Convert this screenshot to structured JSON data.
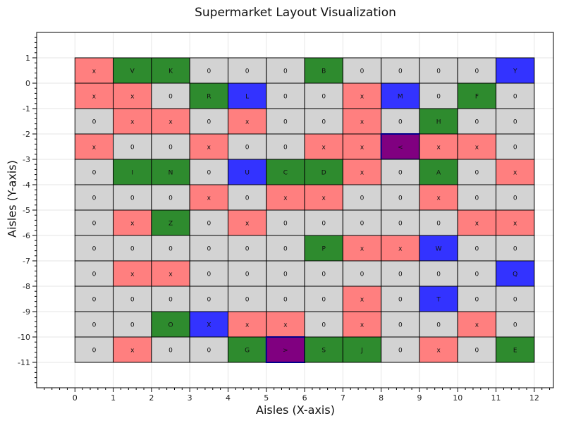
{
  "chart_data": {
    "type": "heatmap",
    "title": "Supermarket Layout Visualization",
    "xlabel": "Aisles (X-axis)",
    "ylabel": "Aisles (Y-axis)",
    "xlim": [
      -1,
      12.5
    ],
    "ylim": [
      -12,
      2
    ],
    "x_ticks": [
      0,
      1,
      2,
      3,
      4,
      5,
      6,
      7,
      8,
      9,
      10,
      11,
      12
    ],
    "y_ticks": [
      1,
      0,
      -1,
      -2,
      -3,
      -4,
      -5,
      -6,
      -7,
      -8,
      -9,
      -10,
      -11
    ],
    "grid": true,
    "colors": {
      "empty": "#d3d3d3",
      "blocked": "#ff7f7f",
      "green": "#2e8b2e",
      "blue": "#3333ff",
      "purple": "#800080",
      "cell_border": "#000000",
      "highlight_border": "#00008b",
      "grid": "#e6e6e6"
    },
    "rows": [
      {
        "y": 1,
        "labels": [
          "x",
          "V",
          "K",
          "0",
          "0",
          "0",
          "B",
          "0",
          "0",
          "0",
          "0",
          "Y"
        ],
        "kinds": [
          "r",
          "g",
          "g",
          "e",
          "e",
          "e",
          "g",
          "e",
          "e",
          "e",
          "e",
          "b"
        ]
      },
      {
        "y": 0,
        "labels": [
          "x",
          "x",
          "0",
          "R",
          "L",
          "0",
          "0",
          "x",
          "M",
          "0",
          "F",
          "0"
        ],
        "kinds": [
          "r",
          "r",
          "e",
          "g",
          "b",
          "e",
          "e",
          "r",
          "b",
          "e",
          "g",
          "e"
        ]
      },
      {
        "y": -1,
        "labels": [
          "0",
          "x",
          "x",
          "0",
          "x",
          "0",
          "0",
          "x",
          "0",
          "H",
          "0",
          "0"
        ],
        "kinds": [
          "e",
          "r",
          "r",
          "e",
          "r",
          "e",
          "e",
          "r",
          "e",
          "g",
          "e",
          "e"
        ]
      },
      {
        "y": -2,
        "labels": [
          "x",
          "0",
          "0",
          "x",
          "0",
          "0",
          "x",
          "x",
          "<",
          "x",
          "x",
          "0"
        ],
        "kinds": [
          "r",
          "e",
          "e",
          "r",
          "e",
          "e",
          "r",
          "r",
          "p",
          "r",
          "r",
          "e"
        ]
      },
      {
        "y": -3,
        "labels": [
          "0",
          "I",
          "N",
          "0",
          "U",
          "C",
          "D",
          "x",
          "0",
          "A",
          "0",
          "x"
        ],
        "kinds": [
          "e",
          "g",
          "g",
          "e",
          "b",
          "g",
          "g",
          "r",
          "e",
          "g",
          "e",
          "r"
        ]
      },
      {
        "y": -4,
        "labels": [
          "0",
          "0",
          "0",
          "x",
          "0",
          "x",
          "x",
          "0",
          "0",
          "x",
          "0",
          "0"
        ],
        "kinds": [
          "e",
          "e",
          "e",
          "r",
          "e",
          "r",
          "r",
          "e",
          "e",
          "r",
          "e",
          "e"
        ]
      },
      {
        "y": -5,
        "labels": [
          "0",
          "x",
          "Z",
          "0",
          "x",
          "0",
          "0",
          "0",
          "0",
          "0",
          "x",
          "x"
        ],
        "kinds": [
          "e",
          "r",
          "g",
          "e",
          "r",
          "e",
          "e",
          "e",
          "e",
          "e",
          "r",
          "r"
        ]
      },
      {
        "y": -6,
        "labels": [
          "0",
          "0",
          "0",
          "0",
          "0",
          "0",
          "P",
          "x",
          "x",
          "W",
          "0",
          "0"
        ],
        "kinds": [
          "e",
          "e",
          "e",
          "e",
          "e",
          "e",
          "g",
          "r",
          "r",
          "b",
          "e",
          "e"
        ]
      },
      {
        "y": -7,
        "labels": [
          "0",
          "x",
          "x",
          "0",
          "0",
          "0",
          "0",
          "0",
          "0",
          "0",
          "0",
          "Q"
        ],
        "kinds": [
          "e",
          "r",
          "r",
          "e",
          "e",
          "e",
          "e",
          "e",
          "e",
          "e",
          "e",
          "b"
        ]
      },
      {
        "y": -8,
        "labels": [
          "0",
          "0",
          "0",
          "0",
          "0",
          "0",
          "0",
          "x",
          "0",
          "T",
          "0",
          "0"
        ],
        "kinds": [
          "e",
          "e",
          "e",
          "e",
          "e",
          "e",
          "e",
          "r",
          "e",
          "b",
          "e",
          "e"
        ]
      },
      {
        "y": -9,
        "labels": [
          "0",
          "0",
          "O",
          "X",
          "x",
          "x",
          "0",
          "x",
          "0",
          "0",
          "x",
          "0"
        ],
        "kinds": [
          "e",
          "e",
          "g",
          "b",
          "r",
          "r",
          "e",
          "r",
          "e",
          "e",
          "r",
          "e"
        ]
      },
      {
        "y": -10,
        "labels": [
          "0",
          "x",
          "0",
          "0",
          "G",
          ">",
          "S",
          "J",
          "0",
          "x",
          "0",
          "E"
        ],
        "kinds": [
          "e",
          "r",
          "e",
          "e",
          "g",
          "p",
          "g",
          "g",
          "e",
          "r",
          "e",
          "g"
        ]
      }
    ]
  }
}
